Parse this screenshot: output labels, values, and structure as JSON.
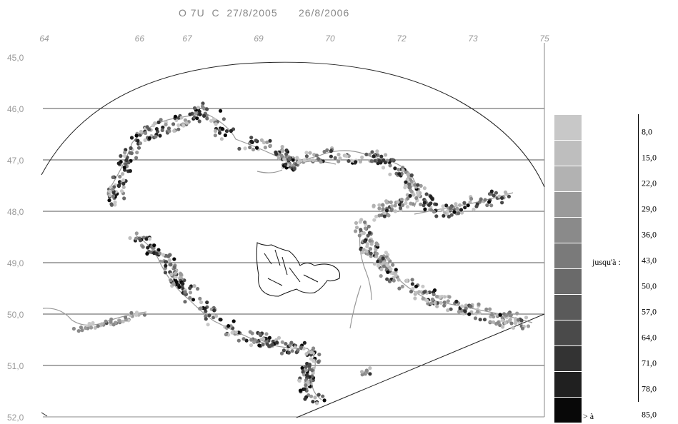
{
  "title": "O 7U  C  27/8/2005      26/8/2006",
  "lon_ticks": [
    {
      "label": "64",
      "x": 64
    },
    {
      "label": "66",
      "x": 66
    },
    {
      "label": "67",
      "x": 67
    },
    {
      "label": "69",
      "x": 68.5
    },
    {
      "label": "70",
      "x": 70
    },
    {
      "label": "72",
      "x": 71.5
    },
    {
      "label": "73",
      "x": 73
    },
    {
      "label": "75",
      "x": 74.5
    }
  ],
  "lat_ticks": [
    "45,0",
    "46,0",
    "47,0",
    "48,0",
    "49,0",
    "50,0",
    "51,0",
    "52,0"
  ],
  "legend": {
    "caption": "jusqu'à :",
    "over_label": "> à",
    "thresholds": [
      "8,0",
      "15,0",
      "22,0",
      "29,0",
      "36,0",
      "43,0",
      "50,0",
      "57,0",
      "64,0",
      "71,0",
      "78,0",
      "85,0"
    ],
    "colors": [
      "#c8c8c8",
      "#bebebe",
      "#b2b2b2",
      "#9a9a9a",
      "#8a8a8a",
      "#7a7a7a",
      "#6a6a6a",
      "#5a5a5a",
      "#4a4a4a",
      "#333333",
      "#202020",
      "#080808"
    ]
  }
}
